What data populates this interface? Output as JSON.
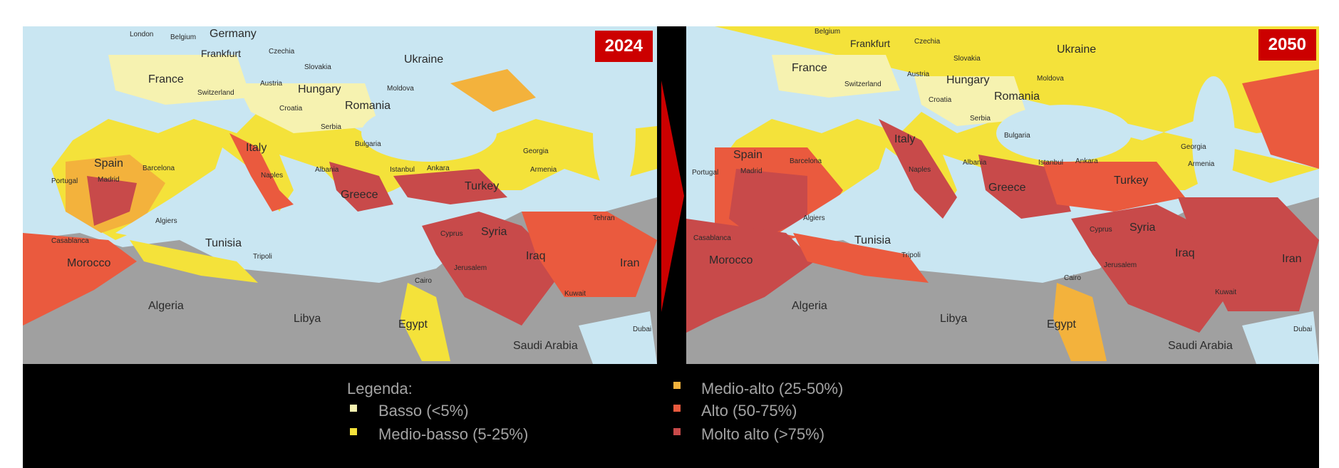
{
  "maps": [
    {
      "year": "2024"
    },
    {
      "year": "2050"
    }
  ],
  "labels": [
    "London",
    "Belgium",
    "Germany",
    "Frankfurt",
    "Czechia",
    "Ukraine",
    "Slovakia",
    "France",
    "Austria",
    "Hungary",
    "Moldova",
    "Switzerland",
    "Romania",
    "Croatia",
    "Serbia",
    "Bulgaria",
    "Georgia",
    "Armenia",
    "Italy",
    "Spain",
    "Barcelona",
    "Portugal",
    "Madrid",
    "Albania",
    "Istanbul",
    "Ankara",
    "Turkey",
    "Naples",
    "Greece",
    "Cyprus",
    "Syria",
    "Algiers",
    "Tunisia",
    "Tripoli",
    "Casablanca",
    "Morocco",
    "Iraq",
    "Iran",
    "Tehran",
    "Algeria",
    "Libya",
    "Egypt",
    "Cairo",
    "Saudi Arabia",
    "Kuwait",
    "Dubai",
    "Jerusalem"
  ],
  "legend": {
    "title": "Legenda:",
    "items": [
      {
        "label": "Basso (<5%)",
        "color": "#f6f2b0"
      },
      {
        "label": "Medio-basso (5-25%)",
        "color": "#f4e23a"
      },
      {
        "label": "Medio-alto (25-50%)",
        "color": "#f3b23c"
      },
      {
        "label": "Alto (50-75%)",
        "color": "#ea5a3e"
      },
      {
        "label": "Molto alto (>75%)",
        "color": "#c84a4a"
      }
    ]
  },
  "colors": {
    "sea": "#c9e6f2",
    "desert": "#a0a0a0",
    "badge": "#cc0000"
  }
}
